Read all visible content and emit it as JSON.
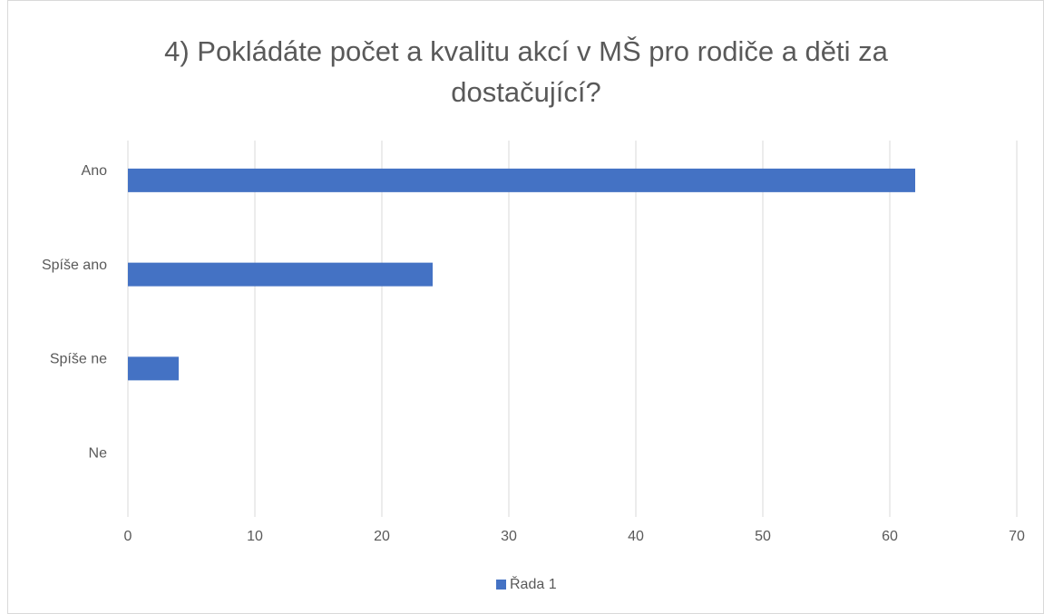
{
  "chart_data": {
    "type": "barh",
    "title": "4) Pokládáte počet a kvalitu akcí v MŠ pro rodiče a děti za dostačující?",
    "categories": [
      "Ano",
      "Spíše ano",
      "Spíše ne",
      "Ne"
    ],
    "series": [
      {
        "name": "Řada 1",
        "color": "#4472c4",
        "values": [
          62,
          24,
          4,
          0
        ]
      }
    ],
    "xlim": [
      0,
      70
    ],
    "xticks": [
      0,
      10,
      20,
      30,
      40,
      50,
      60,
      70
    ],
    "grid": true,
    "legend": "bottom"
  }
}
